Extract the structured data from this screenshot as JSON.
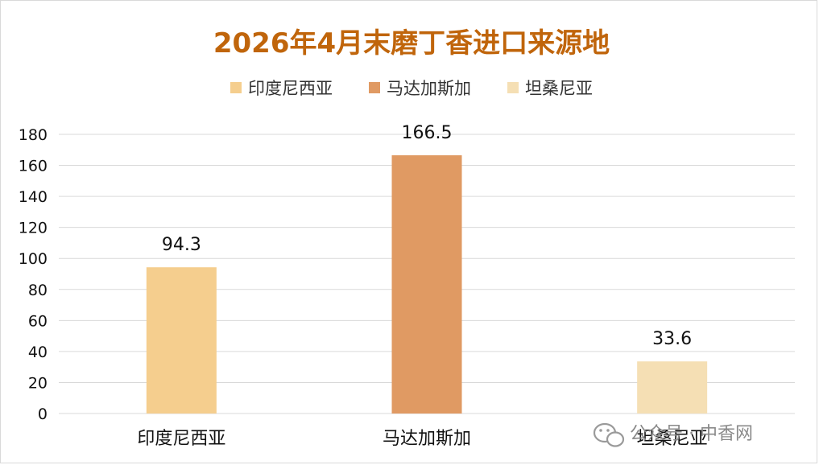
{
  "chart_data": {
    "type": "bar",
    "title": "2026年4月末磨丁香进口来源地",
    "categories": [
      "印度尼西亚",
      "马达加斯加",
      "坦桑尼亚"
    ],
    "values": [
      94.3,
      166.5,
      33.6
    ],
    "data_labels": [
      "94.3",
      "166.5",
      "33.6"
    ],
    "colors": [
      "#F5CE8E",
      "#E09A63",
      "#F5DFB4"
    ],
    "legend": [
      "印度尼西亚",
      "马达加斯加",
      "坦桑尼亚"
    ],
    "legend_position": "top",
    "ylim": [
      0,
      180
    ],
    "yticks": [
      0,
      20,
      40,
      60,
      80,
      100,
      120,
      140,
      160,
      180
    ],
    "grid": true,
    "title_color": "#C0650B",
    "grid_color": "#d9d9d9"
  },
  "watermark": {
    "icon": "wechat-icon",
    "text": "公众号 · 中香网"
  }
}
